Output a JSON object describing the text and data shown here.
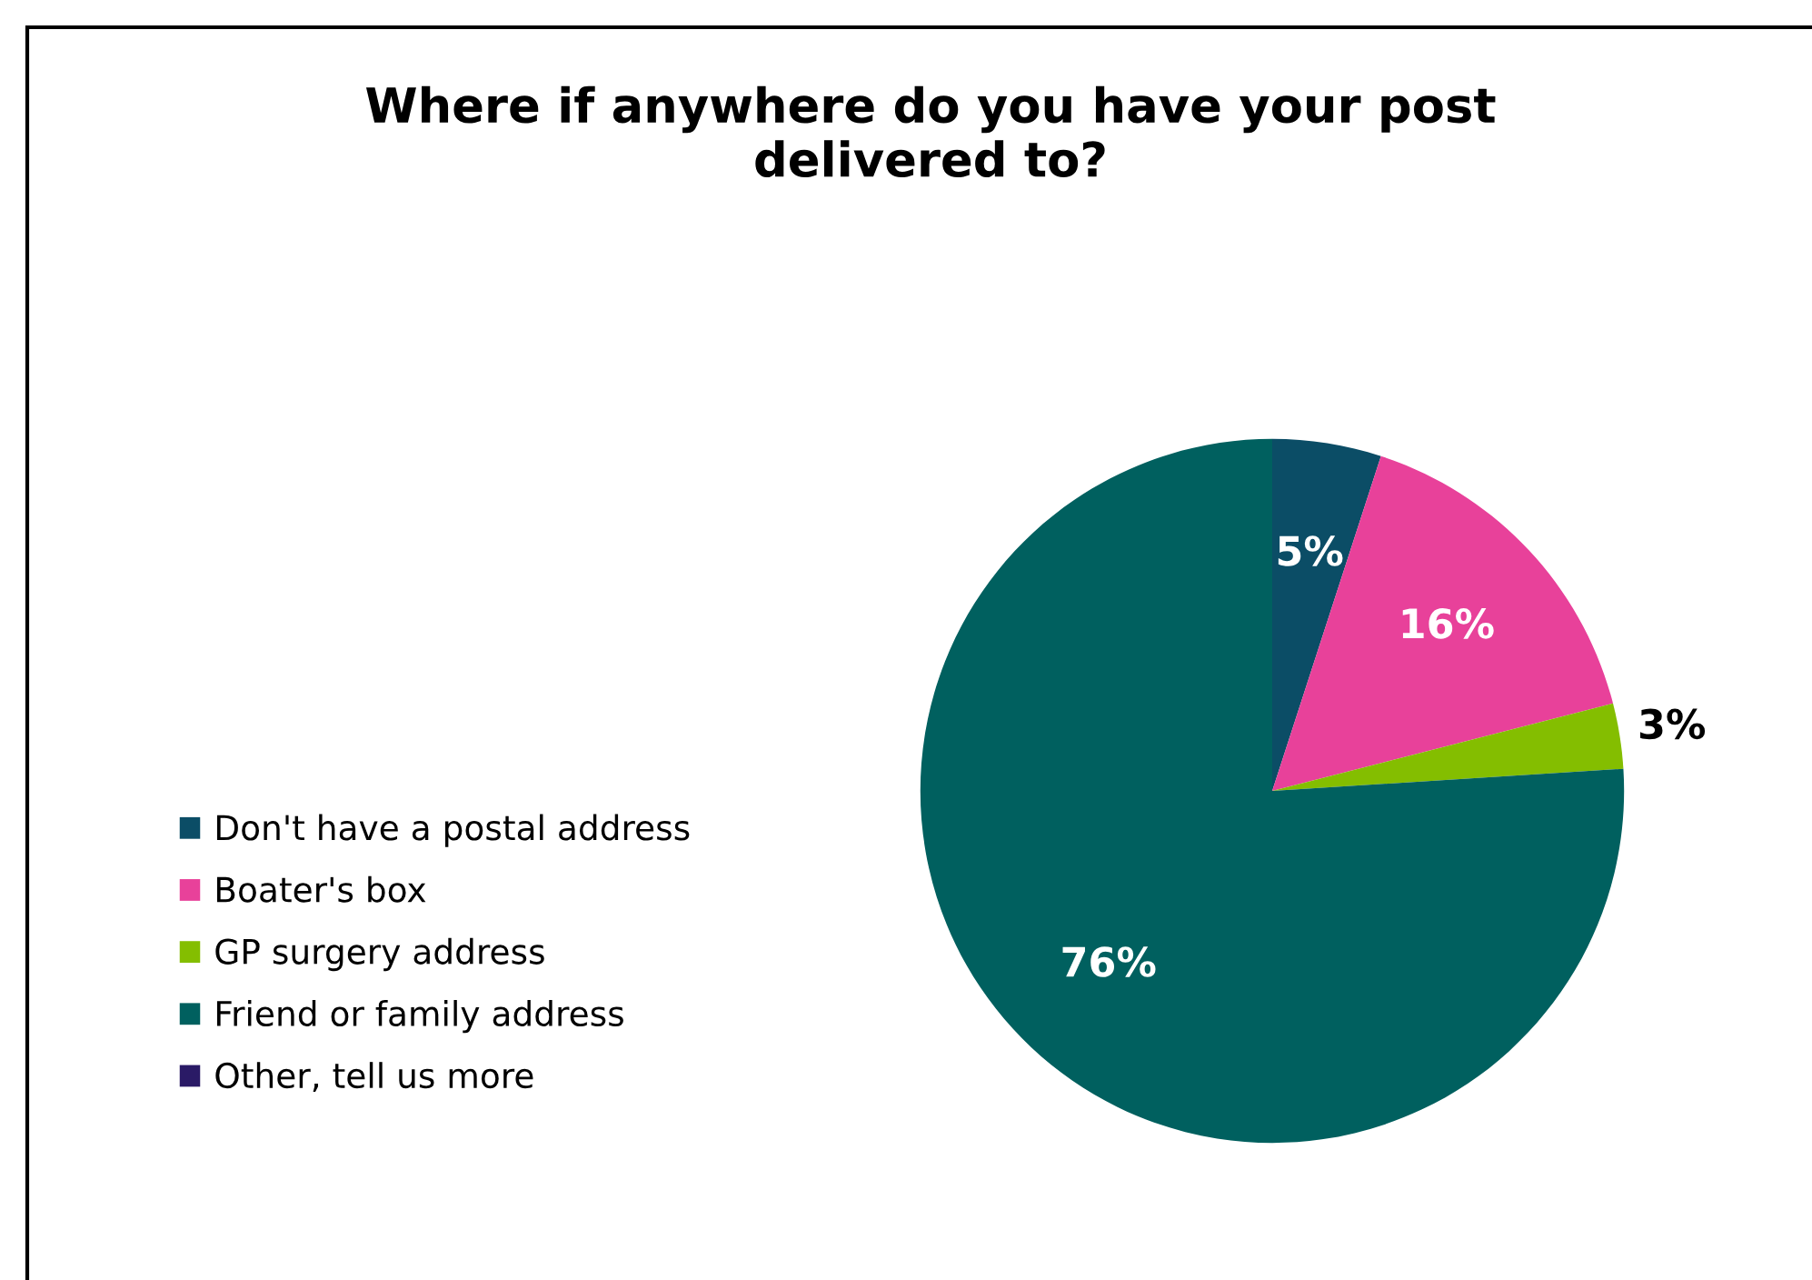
{
  "chart_data": {
    "type": "pie",
    "title": "Where if anywhere do you have your post\ndelivered to?",
    "categories": [
      "Don't have a postal address",
      "Boater's box",
      "GP surgery address",
      "Friend or family address",
      "Other, tell us more"
    ],
    "values": [
      5,
      16,
      3,
      76,
      0
    ],
    "colors": [
      "#0b4d66",
      "#e8419a",
      "#84be00",
      "#00605f",
      "#2a1a66"
    ],
    "value_labels": [
      "5%",
      "16%",
      "3%",
      "76%",
      null
    ],
    "legend": "left"
  }
}
